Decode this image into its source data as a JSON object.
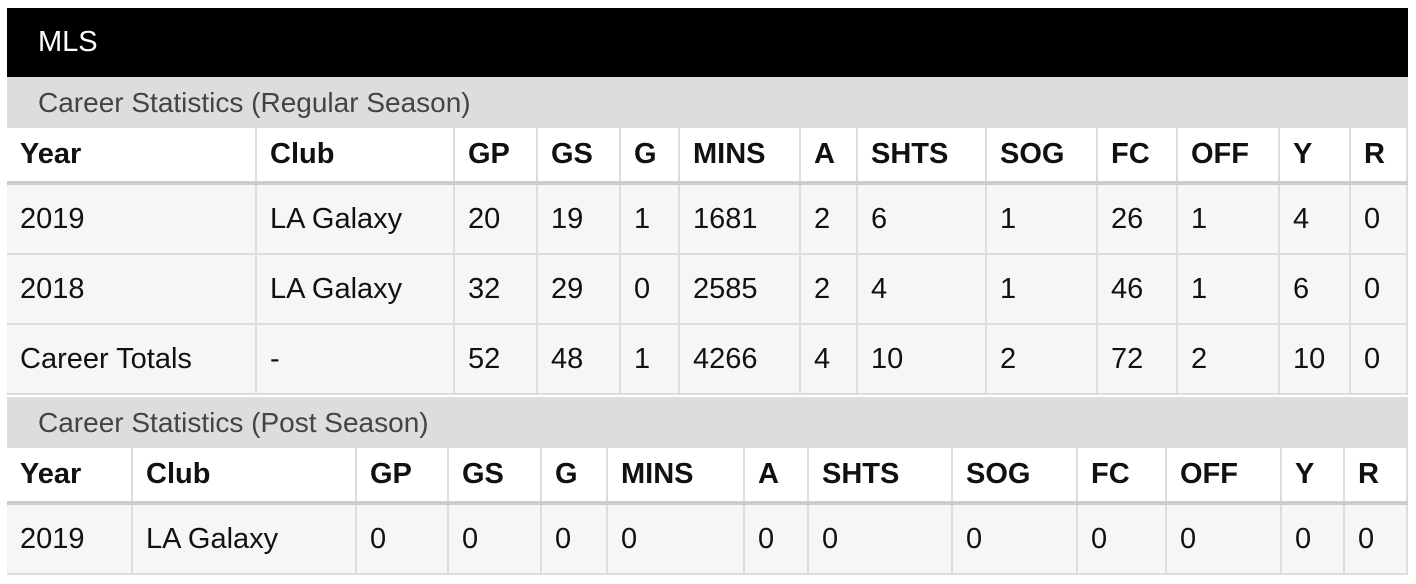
{
  "header": {
    "title": "MLS"
  },
  "sections": [
    {
      "title": "Career Statistics (Regular Season)",
      "columns": [
        "Year",
        "Club",
        "GP",
        "GS",
        "G",
        "MINS",
        "A",
        "SHTS",
        "SOG",
        "FC",
        "OFF",
        "Y",
        "R"
      ],
      "rows": [
        [
          2019,
          "LA Galaxy",
          20,
          19,
          1,
          1681,
          2,
          6,
          1,
          26,
          1,
          4,
          0
        ],
        [
          2018,
          "LA Galaxy",
          32,
          29,
          0,
          2585,
          2,
          4,
          1,
          46,
          1,
          6,
          0
        ],
        [
          "Career Totals",
          "-",
          52,
          48,
          1,
          4266,
          4,
          10,
          2,
          72,
          2,
          10,
          0
        ]
      ]
    },
    {
      "title": "Career Statistics (Post Season)",
      "columns": [
        "Year",
        "Club",
        "GP",
        "GS",
        "G",
        "MINS",
        "A",
        "SHTS",
        "SOG",
        "FC",
        "OFF",
        "Y",
        "R"
      ],
      "rows": [
        [
          2019,
          "LA Galaxy",
          0,
          0,
          0,
          0,
          0,
          0,
          0,
          0,
          0,
          0,
          0
        ]
      ]
    }
  ]
}
